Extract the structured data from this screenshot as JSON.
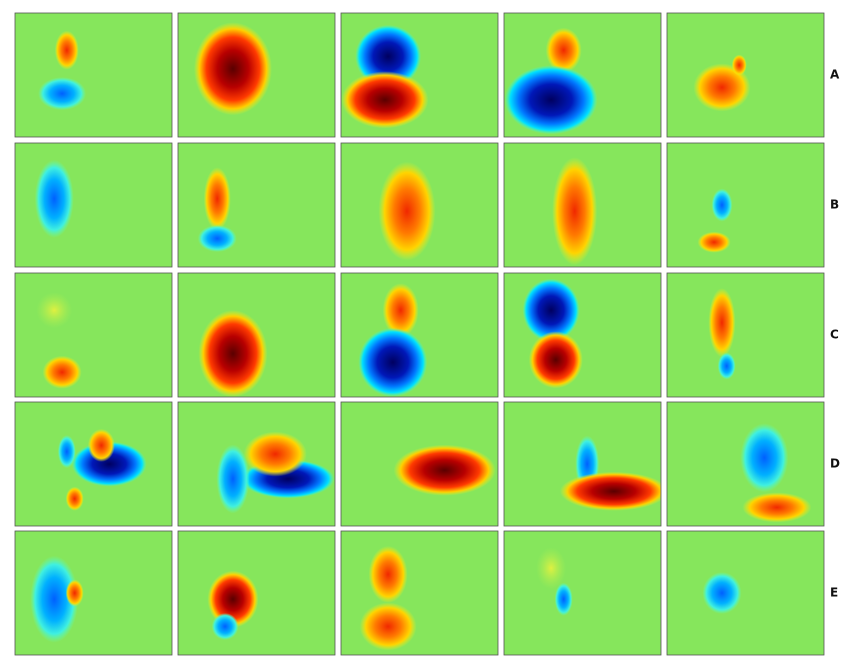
{
  "row_labels": [
    "A",
    "B",
    "C",
    "D",
    "E"
  ]
}
